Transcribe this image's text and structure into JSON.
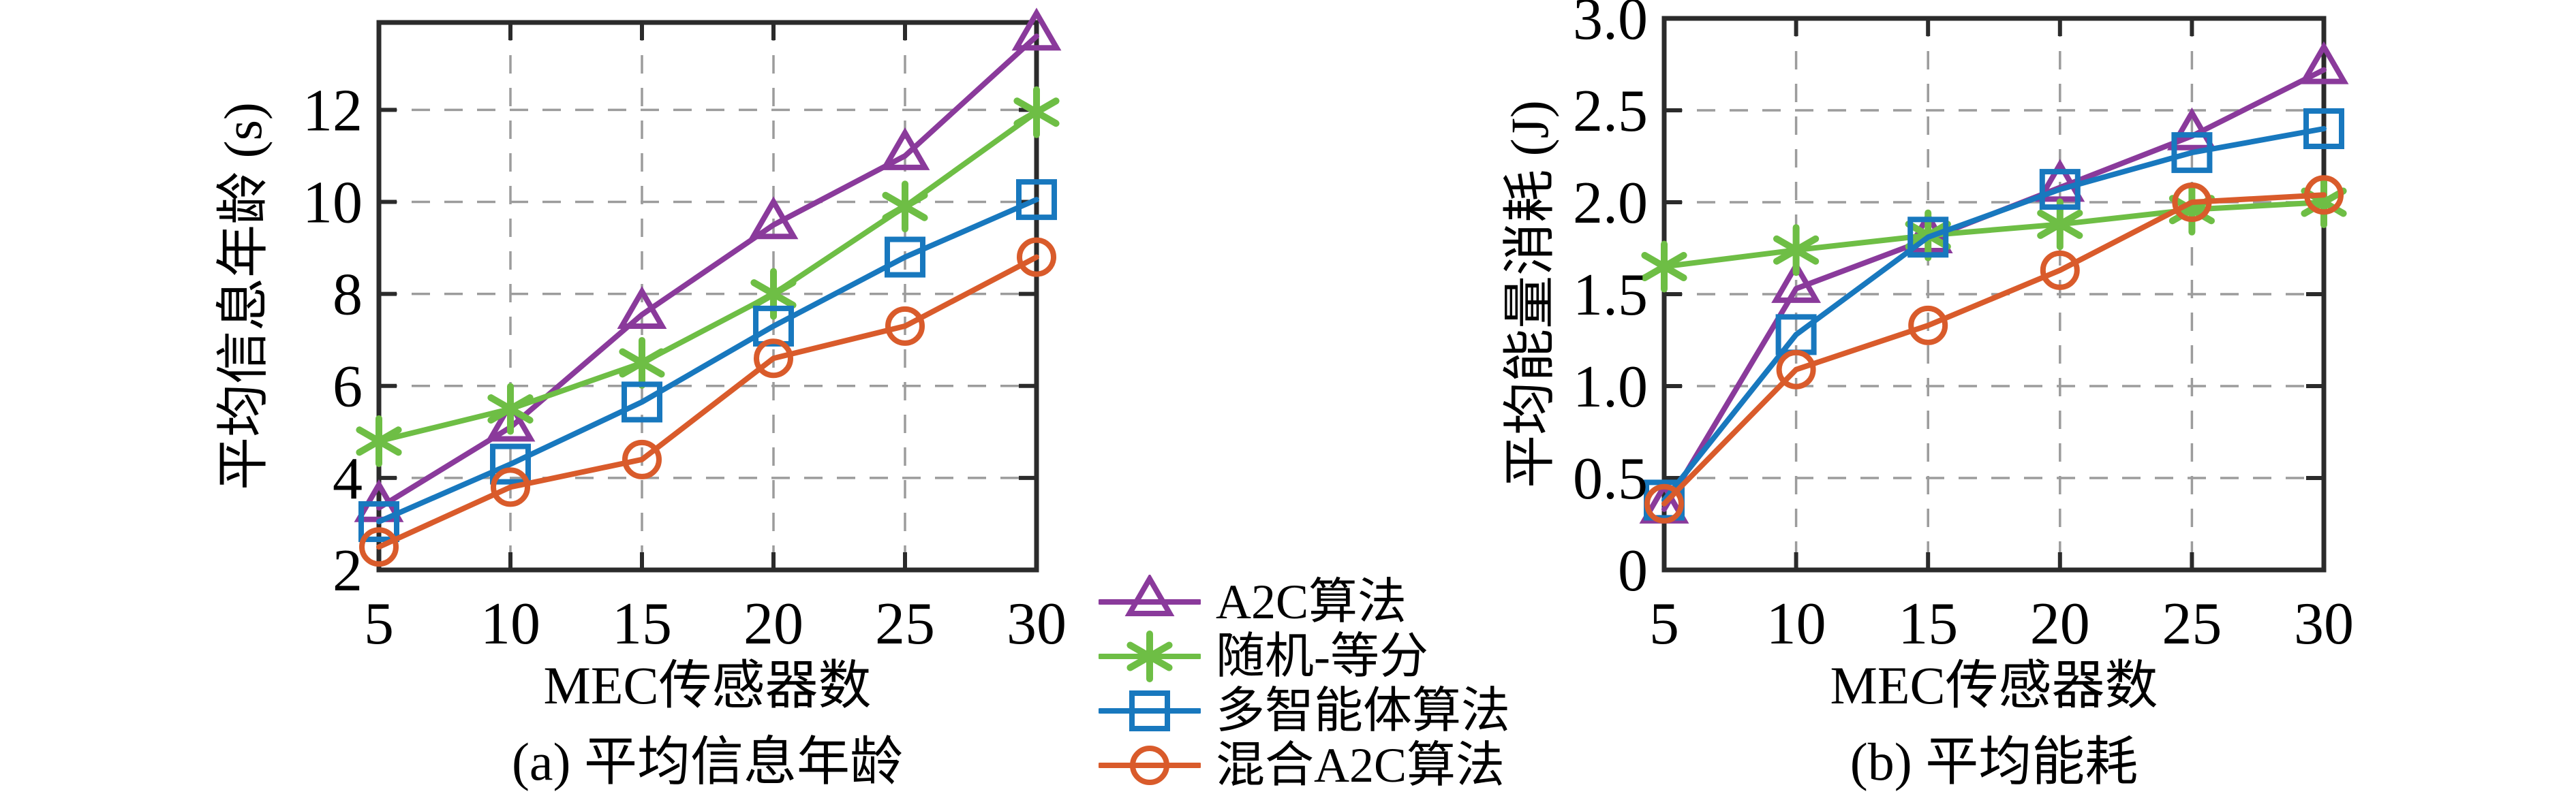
{
  "figure": {
    "background": "#ffffff",
    "frame_color": "#2b2b2b",
    "grid_color": "#9c9c9c",
    "text_color": "#000000",
    "accent_colors": {
      "purple": "#8a3a9b",
      "green": "#6ebe45",
      "blue": "#1878be",
      "orange": "#d95b2b"
    }
  },
  "legend": {
    "position": "bottom-center-between-charts",
    "items": [
      {
        "label": "A2C算法",
        "marker": "triangle",
        "color": "#8a3a9b"
      },
      {
        "label": "随机-等分",
        "marker": "asterisk",
        "color": "#6ebe45"
      },
      {
        "label": "多智能体算法",
        "marker": "square",
        "color": "#1878be"
      },
      {
        "label": "混合A2C算法",
        "marker": "circle",
        "color": "#d95b2b"
      }
    ]
  },
  "chart_data": [
    {
      "type": "line",
      "caption": "(a) 平均信息年龄",
      "xlabel": "MEC传感器数",
      "ylabel": "平均信息年龄 (s)",
      "x": [
        5,
        10,
        15,
        20,
        25,
        30
      ],
      "xlim": [
        5,
        30
      ],
      "ylim": [
        2,
        13.9
      ],
      "xticks": [
        5,
        10,
        15,
        20,
        25,
        30
      ],
      "xtick_labels": [
        "5",
        "10",
        "15",
        "20",
        "25",
        "30"
      ],
      "yticks": [
        2,
        4,
        6,
        8,
        10,
        12
      ],
      "ytick_labels": [
        "2",
        "4",
        "6",
        "8",
        "10",
        "12"
      ],
      "grid": "dashed-both",
      "series": [
        {
          "name": "A2C算法",
          "marker": "triangle",
          "color": "#8a3a9b",
          "values": [
            3.35,
            5.1,
            7.55,
            9.5,
            11.0,
            13.6
          ]
        },
        {
          "name": "随机-等分",
          "marker": "asterisk",
          "color": "#6ebe45",
          "values": [
            4.8,
            5.5,
            6.5,
            8.0,
            9.9,
            11.95
          ]
        },
        {
          "name": "多智能体算法",
          "marker": "square",
          "color": "#1878be",
          "values": [
            3.05,
            4.3,
            5.65,
            7.3,
            8.8,
            10.05
          ]
        },
        {
          "name": "混合A2C算法",
          "marker": "circle",
          "color": "#d95b2b",
          "values": [
            2.5,
            3.8,
            4.4,
            6.6,
            7.3,
            8.8
          ]
        }
      ]
    },
    {
      "type": "line",
      "caption": "(b) 平均能耗",
      "xlabel": "MEC传感器数",
      "ylabel": "平均能量消耗 (J)",
      "x": [
        5,
        10,
        15,
        20,
        25,
        30
      ],
      "xlim": [
        5,
        30
      ],
      "ylim": [
        0,
        3.0
      ],
      "xticks": [
        5,
        10,
        15,
        20,
        25,
        30
      ],
      "xtick_labels": [
        "5",
        "10",
        "15",
        "20",
        "25",
        "30"
      ],
      "yticks": [
        0,
        0.5,
        1.0,
        1.5,
        2.0,
        2.5,
        3.0
      ],
      "ytick_labels": [
        "0",
        "0.5",
        "1.0",
        "1.5",
        "2.0",
        "2.5",
        "3.0"
      ],
      "grid": "dashed-both",
      "series": [
        {
          "name": "A2C算法",
          "marker": "triangle",
          "color": "#8a3a9b",
          "values": [
            0.33,
            1.53,
            1.8,
            2.08,
            2.36,
            2.72
          ]
        },
        {
          "name": "随机-等分",
          "marker": "asterisk",
          "color": "#6ebe45",
          "values": [
            1.65,
            1.74,
            1.82,
            1.88,
            1.96,
            2.0
          ]
        },
        {
          "name": "多智能体算法",
          "marker": "square",
          "color": "#1878be",
          "values": [
            0.38,
            1.28,
            1.81,
            2.07,
            2.27,
            2.4
          ]
        },
        {
          "name": "混合A2C算法",
          "marker": "circle",
          "color": "#d95b2b",
          "values": [
            0.36,
            1.09,
            1.33,
            1.63,
            2.0,
            2.04
          ]
        }
      ]
    }
  ]
}
